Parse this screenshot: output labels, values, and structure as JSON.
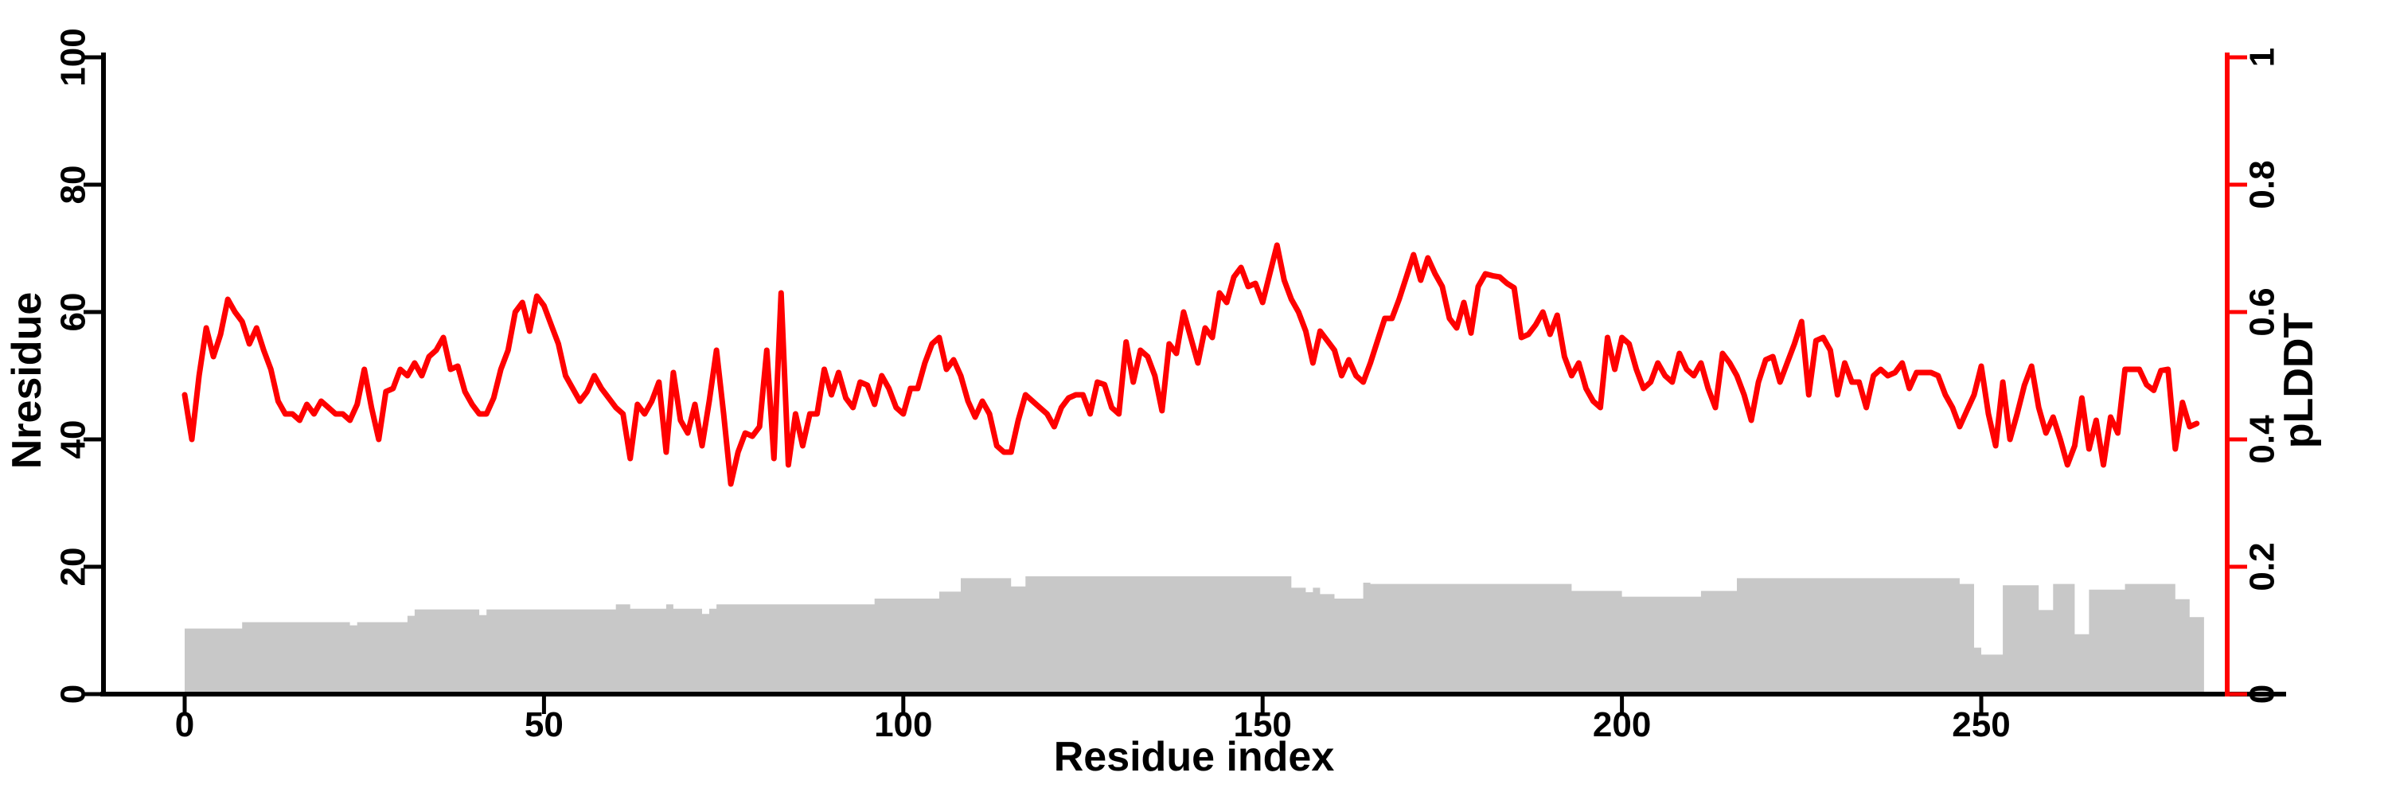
{
  "chart_data": {
    "type": "line",
    "title": "",
    "xlabel": "Residue index",
    "ylabel_left": "Nresidue",
    "ylabel_right": "pLDDT",
    "x_ticks": [
      "0",
      "50",
      "100",
      "150",
      "200",
      "250"
    ],
    "x_tick_values": [
      0,
      50,
      100,
      150,
      200,
      250
    ],
    "left_ticks": [
      "0",
      "20",
      "40",
      "60",
      "80",
      "100"
    ],
    "left_tick_values": [
      0,
      20,
      40,
      60,
      80,
      100
    ],
    "right_ticks": [
      "0",
      "0.2",
      "0.4",
      "0.6",
      "0.8",
      "1"
    ],
    "right_tick_values": [
      0,
      0.2,
      0.4,
      0.6,
      0.8,
      1
    ],
    "xlim": [
      0,
      280
    ],
    "ylim_left": [
      0,
      100
    ],
    "ylim_right": [
      0,
      1
    ],
    "grid": "off",
    "legend": "none",
    "colors": {
      "plddt_line": "#ff0000",
      "right_axis": "#ff0000",
      "nresidue_fill": "#c8c8c8",
      "axis": "#000000",
      "background": "#ffffff"
    },
    "series": [
      {
        "name": "pLDDT",
        "type": "line",
        "axis": "right",
        "x_start": 0,
        "x_step": 1,
        "values": [
          0.47,
          0.4,
          0.5,
          0.575,
          0.53,
          0.565,
          0.62,
          0.6,
          0.585,
          0.55,
          0.575,
          0.54,
          0.51,
          0.46,
          0.44,
          0.44,
          0.43,
          0.455,
          0.44,
          0.46,
          0.45,
          0.44,
          0.44,
          0.43,
          0.455,
          0.51,
          0.45,
          0.4,
          0.475,
          0.48,
          0.51,
          0.5,
          0.52,
          0.5,
          0.53,
          0.54,
          0.56,
          0.51,
          0.515,
          0.475,
          0.455,
          0.44,
          0.44,
          0.465,
          0.51,
          0.54,
          0.6,
          0.615,
          0.57,
          0.625,
          0.61,
          0.58,
          0.55,
          0.5,
          0.48,
          0.46,
          0.475,
          0.5,
          0.48,
          0.465,
          0.45,
          0.44,
          0.37,
          0.455,
          0.44,
          0.46,
          0.49,
          0.38,
          0.505,
          0.43,
          0.41,
          0.455,
          0.39,
          0.46,
          0.54,
          0.44,
          0.33,
          0.38,
          0.41,
          0.405,
          0.42,
          0.54,
          0.37,
          0.63,
          0.36,
          0.44,
          0.39,
          0.44,
          0.44,
          0.51,
          0.47,
          0.505,
          0.465,
          0.45,
          0.49,
          0.485,
          0.455,
          0.5,
          0.48,
          0.45,
          0.44,
          0.48,
          0.48,
          0.52,
          0.55,
          0.56,
          0.51,
          0.525,
          0.5,
          0.46,
          0.435,
          0.46,
          0.44,
          0.39,
          0.38,
          0.38,
          0.43,
          0.47,
          0.46,
          0.45,
          0.44,
          0.42,
          0.45,
          0.465,
          0.47,
          0.47,
          0.44,
          0.49,
          0.486,
          0.45,
          0.44,
          0.553,
          0.49,
          0.54,
          0.53,
          0.5,
          0.445,
          0.55,
          0.535,
          0.6,
          0.56,
          0.52,
          0.575,
          0.56,
          0.63,
          0.615,
          0.655,
          0.67,
          0.64,
          0.645,
          0.615,
          0.66,
          0.705,
          0.65,
          0.62,
          0.6,
          0.57,
          0.52,
          0.57,
          0.555,
          0.54,
          0.5,
          0.525,
          0.5,
          0.49,
          0.52,
          0.555,
          0.59,
          0.59,
          0.62,
          0.655,
          0.69,
          0.65,
          0.685,
          0.66,
          0.64,
          0.59,
          0.575,
          0.615,
          0.567,
          0.64,
          0.66,
          0.657,
          0.655,
          0.645,
          0.638,
          0.56,
          0.565,
          0.58,
          0.6,
          0.565,
          0.595,
          0.53,
          0.5,
          0.52,
          0.48,
          0.46,
          0.45,
          0.56,
          0.51,
          0.56,
          0.55,
          0.51,
          0.48,
          0.49,
          0.52,
          0.5,
          0.49,
          0.535,
          0.51,
          0.5,
          0.52,
          0.48,
          0.45,
          0.535,
          0.52,
          0.5,
          0.47,
          0.43,
          0.49,
          0.525,
          0.53,
          0.49,
          0.52,
          0.55,
          0.585,
          0.47,
          0.555,
          0.56,
          0.54,
          0.47,
          0.52,
          0.49,
          0.49,
          0.45,
          0.5,
          0.51,
          0.5,
          0.505,
          0.52,
          0.48,
          0.505,
          0.505,
          0.505,
          0.5,
          0.47,
          0.45,
          0.42,
          0.445,
          0.47,
          0.515,
          0.44,
          0.39,
          0.49,
          0.4,
          0.44,
          0.485,
          0.515,
          0.45,
          0.41,
          0.435,
          0.4,
          0.36,
          0.39,
          0.465,
          0.385,
          0.43,
          0.36,
          0.435,
          0.41,
          0.51,
          0.51,
          0.51,
          0.486,
          0.477,
          0.508,
          0.51,
          0.385,
          0.458,
          0.42,
          0.425
        ]
      },
      {
        "name": "Nresidue",
        "type": "area-steps",
        "axis": "left",
        "segments": [
          [
            0,
            8,
            10.3
          ],
          [
            8,
            23,
            11.3
          ],
          [
            23,
            24,
            10.8
          ],
          [
            24,
            31,
            11.3
          ],
          [
            31,
            32,
            12.3
          ],
          [
            32,
            41,
            13.3
          ],
          [
            41,
            42,
            12.4
          ],
          [
            42,
            60,
            13.3
          ],
          [
            60,
            62,
            14.1
          ],
          [
            62,
            67,
            13.4
          ],
          [
            67,
            68,
            14.1
          ],
          [
            68,
            72,
            13.4
          ],
          [
            72,
            73,
            12.6
          ],
          [
            73,
            74,
            13.4
          ],
          [
            74,
            96,
            14.1
          ],
          [
            96,
            105,
            15.0
          ],
          [
            105,
            108,
            16.1
          ],
          [
            108,
            115,
            18.2
          ],
          [
            115,
            117,
            16.9
          ],
          [
            117,
            154,
            18.5
          ],
          [
            154,
            156,
            16.7
          ],
          [
            156,
            157,
            16.0
          ],
          [
            157,
            158,
            16.7
          ],
          [
            158,
            160,
            15.7
          ],
          [
            160,
            164,
            15.0
          ],
          [
            164,
            165,
            17.5
          ],
          [
            165,
            193,
            17.3
          ],
          [
            193,
            200,
            16.2
          ],
          [
            200,
            211,
            15.3
          ],
          [
            211,
            216,
            16.2
          ],
          [
            216,
            247,
            18.2
          ],
          [
            247,
            249,
            17.3
          ],
          [
            249,
            250,
            7.3
          ],
          [
            250,
            253,
            6.2
          ],
          [
            253,
            258,
            17.1
          ],
          [
            258,
            260,
            13.2
          ],
          [
            260,
            263,
            17.3
          ],
          [
            263,
            265,
            9.4
          ],
          [
            265,
            270,
            16.4
          ],
          [
            270,
            277,
            17.3
          ],
          [
            277,
            279,
            14.9
          ],
          [
            279,
            281,
            12.1
          ]
        ]
      }
    ]
  }
}
